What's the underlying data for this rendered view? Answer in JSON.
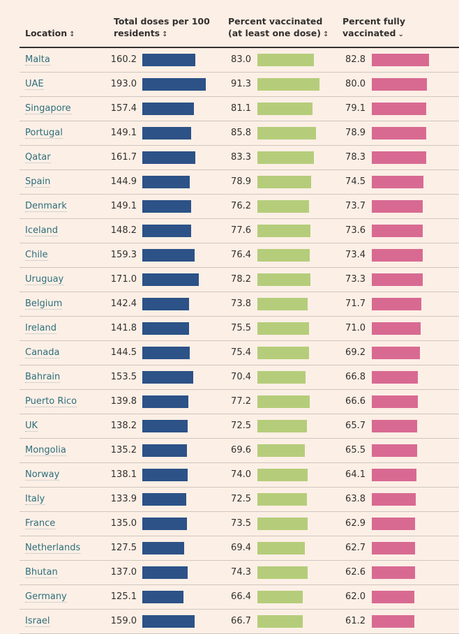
{
  "colors": {
    "doses": "#2c5287",
    "first_dose": "#b5cd7a",
    "fully": "#d86a92",
    "link": "#2e6e7a",
    "background": "#fcefe6"
  },
  "header": {
    "location": "Location",
    "doses": "Total doses per 100 residents",
    "first_dose": "Percent vaccinated (at least one dose)",
    "fully": "Percent fully vaccinated",
    "sort_icon": "↕",
    "sorted_icon": "⌄"
  },
  "chart_data": {
    "type": "table",
    "columns": [
      "Location",
      "Total doses per 100 residents",
      "Percent vaccinated (at least one dose)",
      "Percent fully vaccinated"
    ],
    "sorted_by": "Percent fully vaccinated",
    "sort_order": "descending",
    "rows": [
      {
        "location": "Malta",
        "doses": 160.2,
        "first_dose": 83.0,
        "fully": 82.8
      },
      {
        "location": "UAE",
        "doses": 193.0,
        "first_dose": 91.3,
        "fully": 80.0
      },
      {
        "location": "Singapore",
        "doses": 157.4,
        "first_dose": 81.1,
        "fully": 79.1
      },
      {
        "location": "Portugal",
        "doses": 149.1,
        "first_dose": 85.8,
        "fully": 78.9
      },
      {
        "location": "Qatar",
        "doses": 161.7,
        "first_dose": 83.3,
        "fully": 78.3
      },
      {
        "location": "Spain",
        "doses": 144.9,
        "first_dose": 78.9,
        "fully": 74.5
      },
      {
        "location": "Denmark",
        "doses": 149.1,
        "first_dose": 76.2,
        "fully": 73.7
      },
      {
        "location": "Iceland",
        "doses": 148.2,
        "first_dose": 77.6,
        "fully": 73.6
      },
      {
        "location": "Chile",
        "doses": 159.3,
        "first_dose": 76.4,
        "fully": 73.4
      },
      {
        "location": "Uruguay",
        "doses": 171.0,
        "first_dose": 78.2,
        "fully": 73.3
      },
      {
        "location": "Belgium",
        "doses": 142.4,
        "first_dose": 73.8,
        "fully": 71.7
      },
      {
        "location": "Ireland",
        "doses": 141.8,
        "first_dose": 75.5,
        "fully": 71.0
      },
      {
        "location": "Canada",
        "doses": 144.5,
        "first_dose": 75.4,
        "fully": 69.2
      },
      {
        "location": "Bahrain",
        "doses": 153.5,
        "first_dose": 70.4,
        "fully": 66.8
      },
      {
        "location": "Puerto Rico",
        "doses": 139.8,
        "first_dose": 77.2,
        "fully": 66.6
      },
      {
        "location": "UK",
        "doses": 138.2,
        "first_dose": 72.5,
        "fully": 65.7
      },
      {
        "location": "Mongolia",
        "doses": 135.2,
        "first_dose": 69.6,
        "fully": 65.5
      },
      {
        "location": "Norway",
        "doses": 138.1,
        "first_dose": 74.0,
        "fully": 64.1
      },
      {
        "location": "Italy",
        "doses": 133.9,
        "first_dose": 72.5,
        "fully": 63.8
      },
      {
        "location": "France",
        "doses": 135.0,
        "first_dose": 73.5,
        "fully": 62.9
      },
      {
        "location": "Netherlands",
        "doses": 127.5,
        "first_dose": 69.4,
        "fully": 62.7
      },
      {
        "location": "Bhutan",
        "doses": 137.0,
        "first_dose": 74.3,
        "fully": 62.6
      },
      {
        "location": "Germany",
        "doses": 125.1,
        "first_dose": 66.4,
        "fully": 62.0
      },
      {
        "location": "Israel",
        "doses": 159.0,
        "first_dose": 66.7,
        "fully": 61.2
      }
    ]
  }
}
